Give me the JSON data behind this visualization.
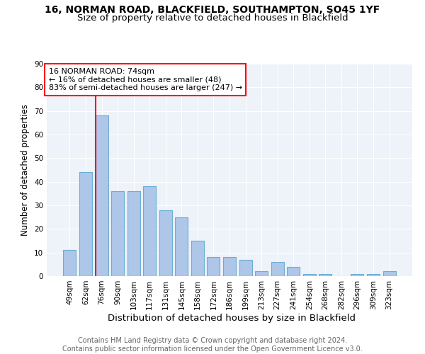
{
  "title": "16, NORMAN ROAD, BLACKFIELD, SOUTHAMPTON, SO45 1YF",
  "subtitle": "Size of property relative to detached houses in Blackfield",
  "xlabel": "Distribution of detached houses by size in Blackfield",
  "ylabel": "Number of detached properties",
  "categories": [
    "49sqm",
    "62sqm",
    "76sqm",
    "90sqm",
    "103sqm",
    "117sqm",
    "131sqm",
    "145sqm",
    "158sqm",
    "172sqm",
    "186sqm",
    "199sqm",
    "213sqm",
    "227sqm",
    "241sqm",
    "254sqm",
    "268sqm",
    "282sqm",
    "296sqm",
    "309sqm",
    "323sqm"
  ],
  "values": [
    11,
    44,
    68,
    36,
    36,
    38,
    28,
    25,
    15,
    8,
    8,
    7,
    2,
    6,
    4,
    1,
    1,
    0,
    1,
    1,
    2
  ],
  "bar_color": "#aec6e8",
  "bar_edge_color": "#6aaed6",
  "vline_color": "red",
  "vline_index": 1.6,
  "annotation_text": "16 NORMAN ROAD: 74sqm\n← 16% of detached houses are smaller (48)\n83% of semi-detached houses are larger (247) →",
  "annotation_box_facecolor": "white",
  "annotation_box_edgecolor": "red",
  "ylim": [
    0,
    90
  ],
  "yticks": [
    0,
    10,
    20,
    30,
    40,
    50,
    60,
    70,
    80,
    90
  ],
  "background_color": "#eef2f9",
  "grid_color": "white",
  "footer_text": "Contains HM Land Registry data © Crown copyright and database right 2024.\nContains public sector information licensed under the Open Government Licence v3.0.",
  "title_fontsize": 10,
  "subtitle_fontsize": 9.5,
  "xlabel_fontsize": 9.5,
  "ylabel_fontsize": 8.5,
  "tick_fontsize": 7.5,
  "annotation_fontsize": 8,
  "footer_fontsize": 7
}
